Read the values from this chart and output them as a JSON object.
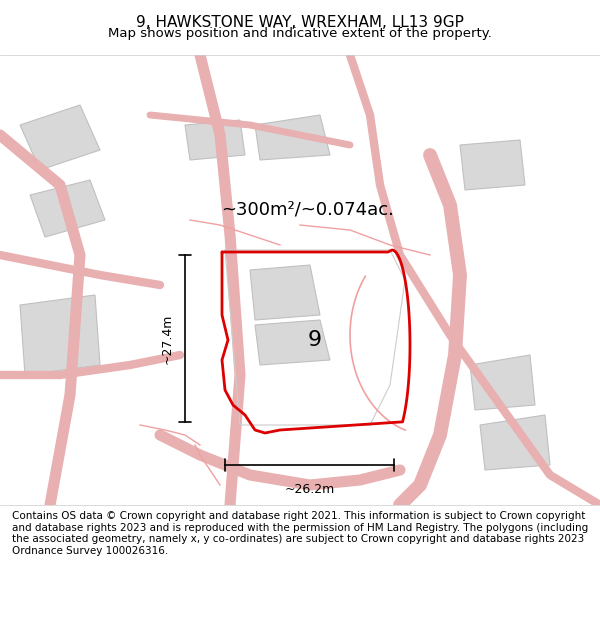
{
  "title": "9, HAWKSTONE WAY, WREXHAM, LL13 9GP",
  "subtitle": "Map shows position and indicative extent of the property.",
  "area_text": "~300m²/~0.074ac.",
  "dim_vertical": "~27.4m",
  "dim_horizontal": "~26.2m",
  "plot_number": "9",
  "bg_color": "#f5f5f5",
  "map_bg": "#f0eeee",
  "road_color": "#e8b0b0",
  "building_color": "#d8d8d8",
  "building_edge": "#c0c0c0",
  "red_outline": "#dd0000",
  "footer_text": "Contains OS data © Crown copyright and database right 2021. This information is subject to Crown copyright and database rights 2023 and is reproduced with the permission of HM Land Registry. The polygons (including the associated geometry, namely x, y co-ordinates) are subject to Crown copyright and database rights 2023 Ordnance Survey 100026316.",
  "title_fontsize": 11,
  "subtitle_fontsize": 9.5,
  "footer_fontsize": 7.5
}
